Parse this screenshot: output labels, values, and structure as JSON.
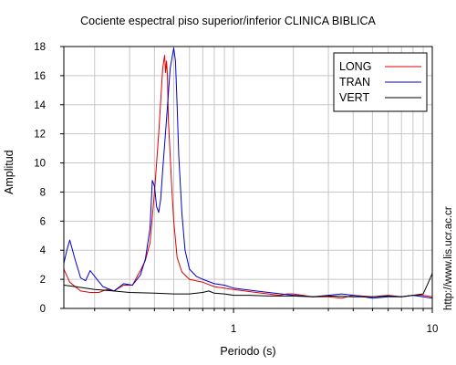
{
  "chart_data": {
    "type": "line",
    "title": "Cociente espectral piso superior/inferior  CLINICA BIBLICA",
    "xlabel": "Periodo (s)",
    "ylabel": "Amplitud",
    "x_scale": "log",
    "xlim": [
      0.14,
      10
    ],
    "ylim": [
      0,
      18
    ],
    "x_ticks": [
      1,
      10
    ],
    "x_tick_labels": [
      "1",
      "10"
    ],
    "y_ticks": [
      0,
      2,
      4,
      6,
      8,
      10,
      12,
      14,
      16,
      18
    ],
    "y_tick_labels": [
      "0",
      "2",
      "4",
      "6",
      "8",
      "10",
      "12",
      "14",
      "16",
      "18"
    ],
    "grid": true,
    "legend_position": "top-right",
    "side_text": "http://www.lis.ucr.ac.cr",
    "series": [
      {
        "name": "LONG",
        "color": "#e00000",
        "x": [
          0.14,
          0.15,
          0.17,
          0.19,
          0.21,
          0.23,
          0.25,
          0.28,
          0.31,
          0.34,
          0.36,
          0.38,
          0.4,
          0.42,
          0.44,
          0.45,
          0.455,
          0.46,
          0.465,
          0.47,
          0.48,
          0.49,
          0.5,
          0.52,
          0.55,
          0.6,
          0.7,
          0.8,
          1.0,
          1.3,
          1.5,
          1.7,
          1.85,
          2.0,
          2.5,
          3.0,
          3.5,
          4.0,
          5.0,
          6.0,
          7.0,
          8.0,
          9.0,
          10.0
        ],
        "y": [
          2.7,
          1.8,
          1.2,
          1.1,
          1.1,
          1.3,
          1.2,
          1.6,
          1.6,
          2.6,
          3.3,
          4.5,
          8.0,
          12.0,
          16.5,
          17.4,
          16.2,
          17.0,
          16.0,
          13.0,
          10.5,
          8.0,
          6.0,
          3.5,
          2.5,
          2.0,
          1.8,
          1.5,
          1.3,
          1.1,
          1.0,
          0.9,
          1.0,
          1.0,
          0.8,
          0.8,
          0.7,
          0.9,
          0.8,
          0.9,
          0.8,
          0.9,
          0.9,
          0.8
        ]
      },
      {
        "name": "TRAN",
        "color": "#0000cc",
        "x": [
          0.14,
          0.145,
          0.15,
          0.16,
          0.17,
          0.18,
          0.19,
          0.2,
          0.22,
          0.25,
          0.28,
          0.31,
          0.34,
          0.36,
          0.38,
          0.39,
          0.4,
          0.41,
          0.42,
          0.43,
          0.44,
          0.46,
          0.48,
          0.5,
          0.51,
          0.52,
          0.53,
          0.55,
          0.57,
          0.6,
          0.65,
          0.7,
          0.8,
          0.9,
          1.0,
          1.3,
          1.5,
          2.0,
          2.5,
          3.0,
          3.5,
          4.0,
          5.0,
          6.0,
          7.0,
          8.0,
          9.0,
          10.0
        ],
        "y": [
          3.1,
          4.0,
          4.7,
          3.3,
          2.1,
          1.9,
          2.6,
          2.2,
          1.5,
          1.2,
          1.7,
          1.6,
          2.3,
          3.4,
          5.5,
          8.8,
          8.4,
          7.0,
          6.6,
          7.5,
          9.5,
          13.0,
          16.5,
          17.9,
          17.0,
          14.0,
          10.5,
          6.5,
          4.0,
          2.7,
          2.2,
          2.0,
          1.7,
          1.6,
          1.4,
          1.2,
          1.1,
          0.9,
          0.8,
          0.9,
          1.0,
          0.9,
          0.7,
          0.8,
          0.8,
          0.9,
          0.8,
          0.7
        ]
      },
      {
        "name": "VERT",
        "color": "#000000",
        "x": [
          0.14,
          0.16,
          0.18,
          0.2,
          0.25,
          0.3,
          0.4,
          0.5,
          0.6,
          0.7,
          0.75,
          0.8,
          0.9,
          1.0,
          1.2,
          1.5,
          2.0,
          2.5,
          3.0,
          4.0,
          5.0,
          6.0,
          7.0,
          8.0,
          9.0,
          9.5,
          10.0
        ],
        "y": [
          1.6,
          1.5,
          1.4,
          1.3,
          1.2,
          1.1,
          1.05,
          1.0,
          1.0,
          1.1,
          1.2,
          1.05,
          1.0,
          0.9,
          0.9,
          0.85,
          0.85,
          0.8,
          0.85,
          0.8,
          0.8,
          0.85,
          0.8,
          0.9,
          1.0,
          1.7,
          2.4
        ]
      }
    ]
  }
}
